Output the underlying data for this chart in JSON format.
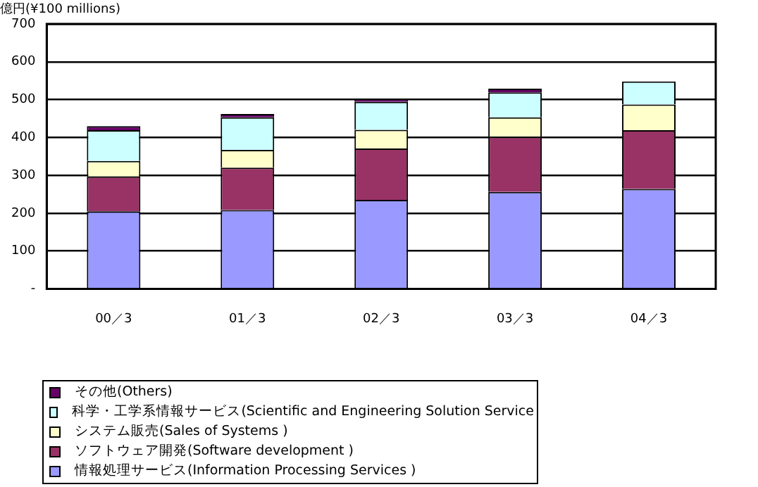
{
  "chart_data": {
    "type": "bar",
    "stacked": true,
    "ylabel": "億円(¥100 millions)",
    "categories": [
      "00／3",
      "01／3",
      "02／3",
      "03／3",
      "04／3"
    ],
    "series": [
      {
        "name": "情報処理サービス(Information Processing Services )",
        "color": "#9999ff",
        "values": [
          205,
          208,
          235,
          256,
          264
        ]
      },
      {
        "name": "ソフトウェア開発(Software development )",
        "color": "#993366",
        "values": [
          92,
          112,
          136,
          146,
          155
        ]
      },
      {
        "name": "システム販売(Sales of Systems )",
        "color": "#ffffcc",
        "values": [
          41,
          47,
          49,
          51,
          68
        ]
      },
      {
        "name": "科学・工学系情報サービス(Scientific and Engineering Solution Service",
        "color": "#ccffff",
        "values": [
          81,
          86,
          74,
          66,
          61
        ]
      },
      {
        "name": "その他(Others)",
        "color": "#660066",
        "values": [
          11,
          9,
          8,
          10,
          0
        ]
      }
    ],
    "ylim": [
      0,
      700
    ],
    "yticks": [
      {
        "value": 0,
        "label": "-"
      },
      100,
      200,
      300,
      400,
      500,
      600,
      700
    ],
    "grid": "y",
    "legend": "bottom left"
  }
}
